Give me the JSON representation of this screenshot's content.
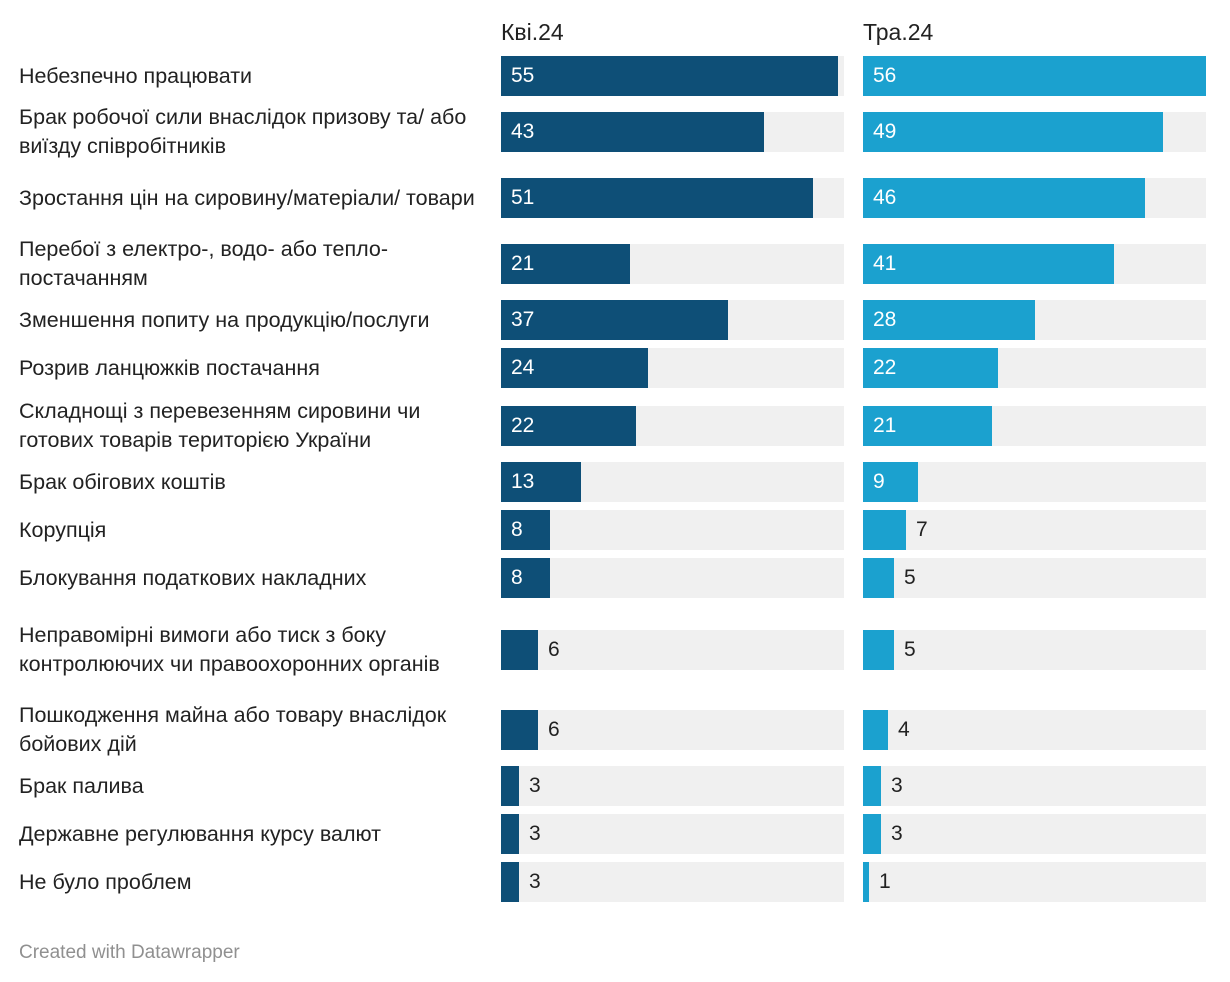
{
  "chart_data": {
    "type": "bar",
    "orientation": "horizontal",
    "series": [
      {
        "name": "Кві.24",
        "color": "#0e4f77",
        "values": [
          55,
          43,
          51,
          21,
          37,
          24,
          22,
          13,
          8,
          8,
          6,
          6,
          3,
          3,
          3
        ]
      },
      {
        "name": "Тра.24",
        "color": "#1ba1cf",
        "values": [
          56,
          49,
          46,
          41,
          28,
          22,
          21,
          9,
          7,
          5,
          5,
          4,
          3,
          3,
          1
        ]
      }
    ],
    "categories": [
      "Небезпечно працювати",
      "Брак робочої сили внаслідок призову та/ або виїзду співробітників",
      "Зростання цін на сировину/матеріали/ товари",
      "Перебої з електро-, водо- або тепло- постачанням",
      "Зменшення попиту на продукцію/послуги",
      "Розрив ланцюжків постачання",
      "Складнощі з перевезенням сировини чи готових товарів територією України",
      "Брак обігових коштів",
      "Корупція",
      "Блокування податкових накладних",
      "Неправомірні вимоги або тиск з боку контролюючих чи правоохоронних органів",
      "Пошкодження майна або товару внаслідок бойових дій",
      "Брак палива",
      "Державне регулювання курсу валют",
      "Не було проблем"
    ],
    "xlim": [
      0,
      56
    ],
    "track_color": "#f0f0f0"
  },
  "footer": "Created with Datawrapper"
}
